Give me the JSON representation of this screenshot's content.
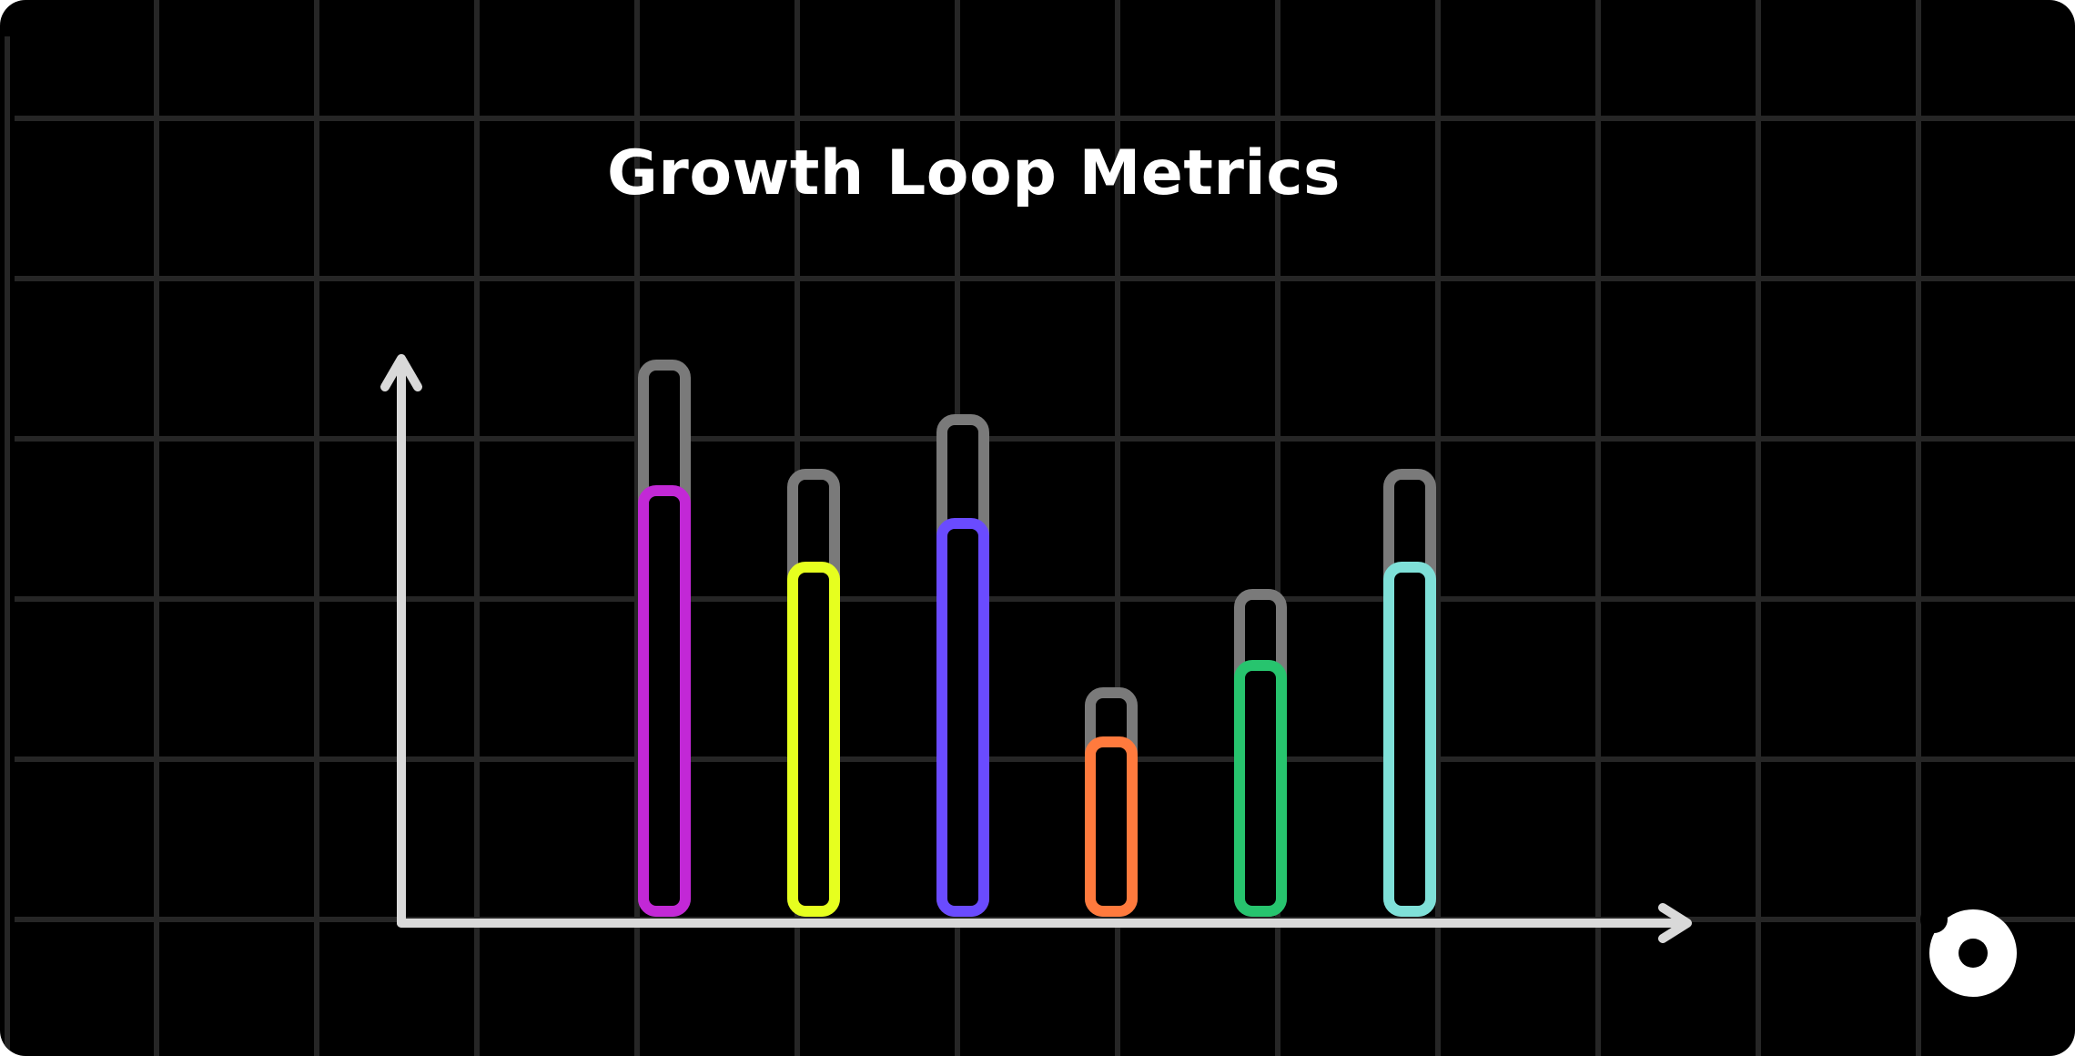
{
  "chart_data": {
    "type": "bar",
    "title": "Growth Loop Metrics",
    "xlabel": "",
    "ylabel": "",
    "ylim": [
      0,
      100
    ],
    "grid": true,
    "categories": [
      "",
      "",
      "",
      "",
      "",
      ""
    ],
    "series": [
      {
        "values": [
          100,
          80,
          90,
          40,
          58,
          80
        ]
      },
      {
        "values": [
          77,
          63,
          71,
          31,
          45,
          63
        ]
      }
    ],
    "colors": {
      "background": "#000000",
      "grid": "#262626",
      "axis": "#d9d9d9",
      "target_outline": "#7a7a7a",
      "bars": [
        "#c228d6",
        "#e6ff1f",
        "#6a4bff",
        "#ff7a3d",
        "#27c46e",
        "#7fe0d8"
      ]
    }
  },
  "brand": {
    "icon": "donut-logo-icon",
    "color": "#ffffff"
  }
}
